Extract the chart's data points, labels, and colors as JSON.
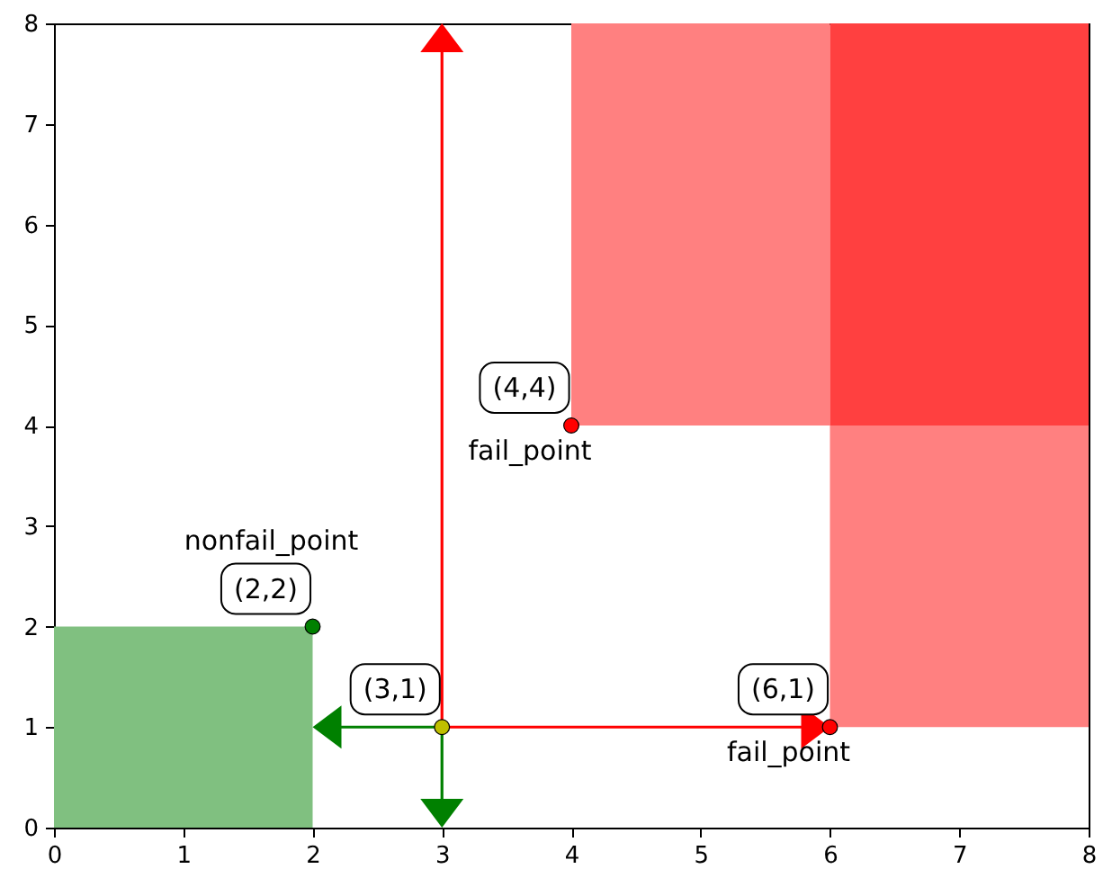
{
  "chart_data": {
    "type": "scatter",
    "xlim": [
      0,
      8
    ],
    "ylim": [
      0,
      8
    ],
    "xticks": [
      0,
      1,
      2,
      3,
      4,
      5,
      6,
      7,
      8
    ],
    "yticks": [
      0,
      1,
      2,
      3,
      4,
      5,
      6,
      7,
      8
    ],
    "grid": false,
    "series": [
      {
        "type": "area",
        "x": [
          0,
          2
        ],
        "values": [
          2,
          2
        ],
        "color": "#80c080"
      },
      {
        "type": "area",
        "x": [
          4,
          6
        ],
        "values": [
          null,
          null
        ],
        "upper": [
          8,
          8
        ],
        "lower": [
          4,
          4
        ],
        "color": "#ff8080"
      },
      {
        "type": "area",
        "x": [
          6,
          8
        ],
        "values": [
          null,
          null
        ],
        "upper": [
          8,
          8
        ],
        "lower": [
          4,
          4
        ],
        "color": "#ff4040"
      },
      {
        "type": "area",
        "x": [
          6,
          8
        ],
        "values": [
          null,
          null
        ],
        "upper": [
          4,
          4
        ],
        "lower": [
          1,
          1
        ],
        "color": "#ff8080"
      },
      {
        "marker": "circle",
        "x": [
          2,
          4,
          6,
          3
        ],
        "values": [
          2,
          4,
          1,
          1
        ],
        "colors": [
          "#008000",
          "#ff0000",
          "#ff0000",
          "#bfbf00"
        ]
      }
    ],
    "annotations": [
      {
        "text": "(4,4)",
        "x": 4,
        "y": 4
      },
      "fail_point",
      "nonfail_point",
      {
        "text": "(2,2)",
        "x": 2,
        "y": 2
      },
      {
        "text": "(3,1)",
        "x": 3,
        "y": 1
      },
      {
        "text": "(6,1)",
        "x": 6,
        "y": 1
      },
      "fail_point"
    ]
  }
}
